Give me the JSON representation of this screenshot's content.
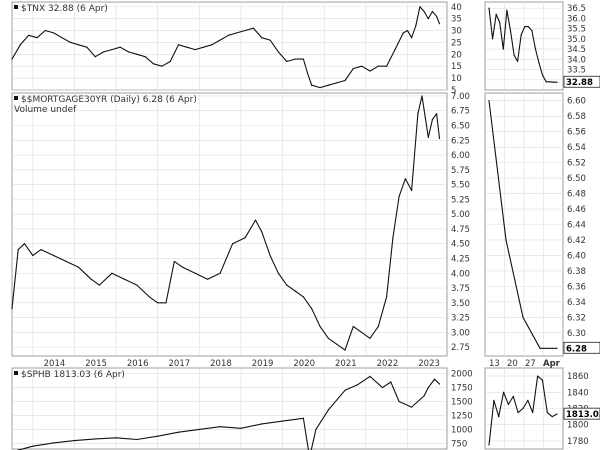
{
  "chart_data": [
    {
      "type": "line",
      "title": "$TNX 32.88 (6 Apr)",
      "last_value": "32.88",
      "x_axis": [
        "2014",
        "2015",
        "2016",
        "2017",
        "2018",
        "2019",
        "2020",
        "2021",
        "2022",
        "2023"
      ],
      "ylim": [
        5,
        42
      ],
      "yticks": [
        "5",
        "10",
        "15",
        "20",
        "25",
        "30",
        "35",
        "40"
      ],
      "x": [
        2013.0,
        2013.2,
        2013.4,
        2013.6,
        2013.8,
        2014.0,
        2014.2,
        2014.4,
        2014.6,
        2014.8,
        2015.0,
        2015.2,
        2015.4,
        2015.6,
        2015.8,
        2016.0,
        2016.2,
        2016.4,
        2016.6,
        2016.8,
        2017.0,
        2017.2,
        2017.4,
        2017.6,
        2017.8,
        2018.0,
        2018.2,
        2018.4,
        2018.6,
        2018.8,
        2019.0,
        2019.2,
        2019.4,
        2019.6,
        2019.8,
        2020.0,
        2020.1,
        2020.2,
        2020.4,
        2020.6,
        2020.8,
        2021.0,
        2021.2,
        2021.4,
        2021.6,
        2021.8,
        2022.0,
        2022.2,
        2022.4,
        2022.5,
        2022.6,
        2022.7,
        2022.8,
        2022.9,
        2023.0,
        2023.1,
        2023.2,
        2023.27
      ],
      "y": [
        18,
        24,
        28,
        27,
        30,
        29,
        27,
        25,
        24,
        23,
        19,
        21,
        22,
        23,
        21,
        20,
        19,
        16,
        15,
        17,
        24,
        23,
        22,
        23,
        24,
        26,
        28,
        29,
        30,
        31,
        27,
        26,
        21,
        17,
        18,
        18,
        12,
        7,
        6,
        7,
        8,
        9,
        14,
        15,
        13,
        15,
        15,
        22,
        29,
        30,
        27,
        32,
        40,
        38,
        35,
        38,
        36,
        32.88
      ]
    },
    {
      "type": "line",
      "title": "$TNX 32.88 (6 Apr)",
      "x_axis": [],
      "ylim": [
        32.5,
        36.8
      ],
      "yticks": [
        "33.0",
        "33.5",
        "34.0",
        "34.5",
        "35.0",
        "35.5",
        "36.0",
        "36.5"
      ],
      "last_value": "32.88",
      "x": [
        1,
        2,
        3,
        4,
        5,
        6,
        7,
        8,
        9,
        10,
        11,
        12,
        13,
        14,
        15,
        16,
        17,
        18,
        19,
        20
      ],
      "y": [
        36.5,
        35,
        36.2,
        35.8,
        34.5,
        36.4,
        35.4,
        34.2,
        33.9,
        35.2,
        35.6,
        35.6,
        35.4,
        34.5,
        33.8,
        33.2,
        32.9,
        32.9,
        32.88,
        32.88
      ]
    },
    {
      "type": "line",
      "title": "$$MORTGAGE30YR (Daily) 6.28 (6 Apr)",
      "subtitle": "Volume undef",
      "x_axis": [
        "2014",
        "2015",
        "2016",
        "2017",
        "2018",
        "2019",
        "2020",
        "2021",
        "2022",
        "2023"
      ],
      "ylim": [
        2.6,
        7.05
      ],
      "yticks": [
        "2.75",
        "3.00",
        "3.25",
        "3.50",
        "3.75",
        "4.00",
        "4.25",
        "4.50",
        "4.75",
        "5.00",
        "5.25",
        "5.50",
        "5.75",
        "6.00",
        "6.25",
        "6.50",
        "6.75",
        "7.00"
      ],
      "last_value": "6.28",
      "x": [
        2013.0,
        2013.15,
        2013.3,
        2013.5,
        2013.7,
        2014.0,
        2014.3,
        2014.6,
        2014.9,
        2015.1,
        2015.4,
        2015.7,
        2016.0,
        2016.3,
        2016.5,
        2016.7,
        2016.9,
        2017.1,
        2017.4,
        2017.7,
        2018.0,
        2018.3,
        2018.6,
        2018.85,
        2019.0,
        2019.2,
        2019.4,
        2019.6,
        2019.8,
        2020.0,
        2020.2,
        2020.4,
        2020.6,
        2020.8,
        2021.0,
        2021.2,
        2021.4,
        2021.6,
        2021.8,
        2022.0,
        2022.15,
        2022.3,
        2022.45,
        2022.6,
        2022.75,
        2022.85,
        2023.0,
        2023.1,
        2023.2,
        2023.27
      ],
      "y": [
        3.4,
        4.4,
        4.5,
        4.3,
        4.4,
        4.3,
        4.2,
        4.1,
        3.9,
        3.8,
        4.0,
        3.9,
        3.8,
        3.6,
        3.5,
        3.5,
        4.2,
        4.1,
        4.0,
        3.9,
        4.0,
        4.5,
        4.6,
        4.9,
        4.7,
        4.3,
        4.0,
        3.8,
        3.7,
        3.6,
        3.4,
        3.1,
        2.9,
        2.8,
        2.7,
        3.1,
        3.0,
        2.9,
        3.1,
        3.6,
        4.6,
        5.3,
        5.6,
        5.4,
        6.7,
        7.0,
        6.3,
        6.6,
        6.7,
        6.28
      ]
    },
    {
      "type": "line",
      "title": "$$MORTGAGE30YR (Daily) 6.28 (6 Apr)",
      "x_axis": [
        "13",
        "20",
        "27",
        "Apr"
      ],
      "ylim": [
        6.27,
        6.61
      ],
      "yticks": [
        "6.30",
        "6.32",
        "6.34",
        "6.36",
        "6.38",
        "6.40",
        "6.42",
        "6.44",
        "6.46",
        "6.48",
        "6.50",
        "6.52",
        "6.54",
        "6.56",
        "6.58",
        "6.60"
      ],
      "last_value": "6.28",
      "x": [
        1,
        2,
        3,
        4,
        5
      ],
      "y": [
        6.6,
        6.42,
        6.32,
        6.28,
        6.28
      ]
    },
    {
      "type": "line",
      "title": "$SPHB 1813.03 (6 Apr)",
      "x_axis": [],
      "ylim": [
        650,
        2100
      ],
      "yticks": [
        "750",
        "1000",
        "1250",
        "1500",
        "1750",
        "2000"
      ],
      "last_value": "1813.03",
      "x": [
        2013.0,
        2013.5,
        2014.0,
        2014.5,
        2015.0,
        2015.5,
        2016.0,
        2016.5,
        2017.0,
        2017.5,
        2018.0,
        2018.5,
        2019.0,
        2019.5,
        2020.0,
        2020.15,
        2020.3,
        2020.6,
        2021.0,
        2021.3,
        2021.6,
        2021.9,
        2022.1,
        2022.3,
        2022.6,
        2022.9,
        2023.0,
        2023.15,
        2023.27
      ],
      "y": [
        600,
        700,
        760,
        800,
        830,
        850,
        820,
        880,
        950,
        1000,
        1050,
        1020,
        1100,
        1150,
        1200,
        500,
        1000,
        1350,
        1700,
        1800,
        1950,
        1750,
        1850,
        1500,
        1400,
        1600,
        1750,
        1900,
        1813.03
      ]
    },
    {
      "type": "line",
      "title": "$SPHB 1813.03 (6 Apr)",
      "x_axis": [],
      "ylim": [
        1770,
        1870
      ],
      "yticks": [
        "1780",
        "1800",
        "1820",
        "1840",
        "1860"
      ],
      "last_value": "1813.03",
      "x": [
        1,
        2,
        3,
        4,
        5,
        6,
        7,
        8,
        9,
        10,
        11,
        12,
        13,
        14,
        15
      ],
      "y": [
        1775,
        1830,
        1810,
        1840,
        1825,
        1835,
        1815,
        1820,
        1830,
        1815,
        1860,
        1855,
        1815,
        1810,
        1813.03
      ]
    }
  ],
  "page": {
    "tnx_title": "$TNX 32.88 (6 Apr)",
    "mort_title": "$$MORTGAGE30YR (Daily) 6.28 (6 Apr)",
    "mort_sub": "Volume undef",
    "sphb_title": "$SPHB 1813.03 (6 Apr)"
  }
}
